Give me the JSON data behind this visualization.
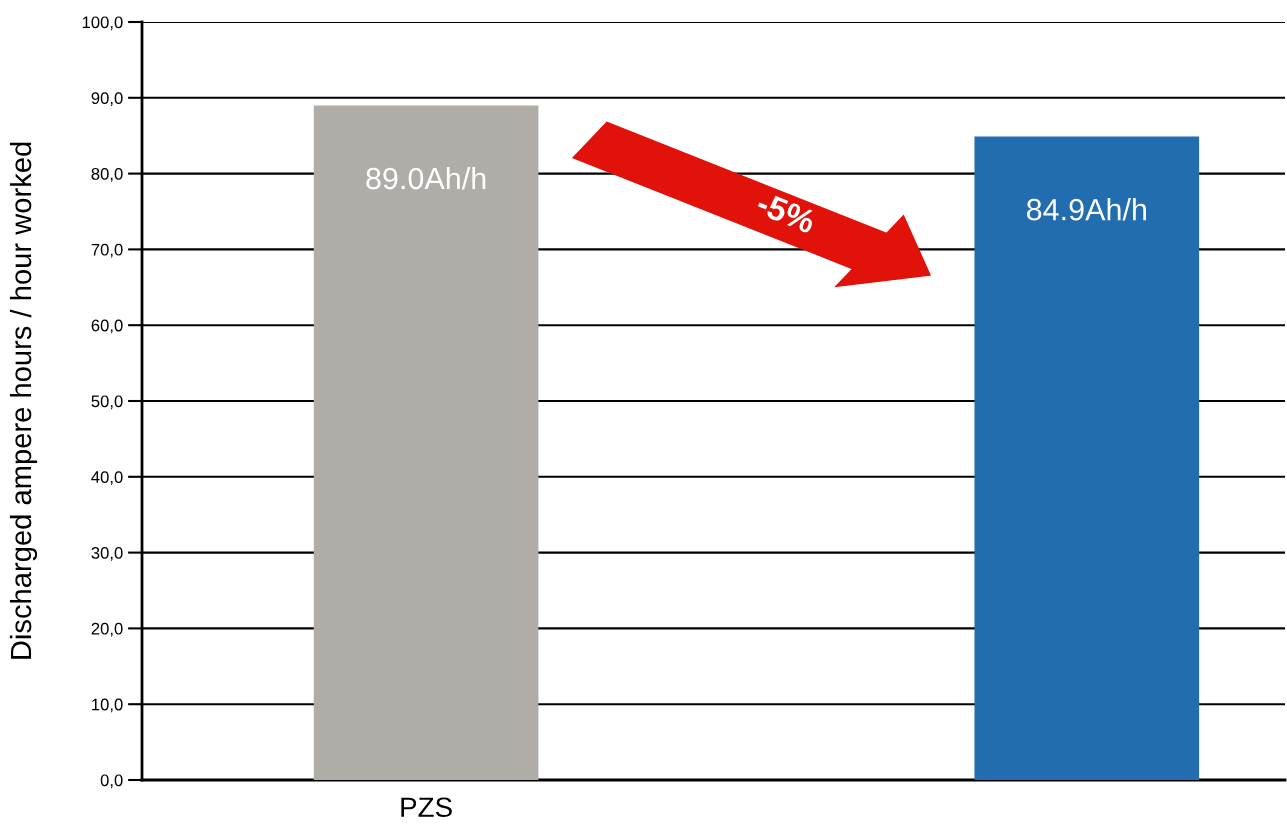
{
  "chart_data": {
    "type": "bar",
    "categories": [
      "PZS",
      null
    ],
    "values": [
      89.0,
      84.9
    ],
    "colors": [
      "#b0aca8",
      "#226db0"
    ],
    "value_labels": [
      "89.0Ah/h",
      "84.9Ah/h"
    ],
    "ylabel": "Discharged ampere hours / hour worked",
    "ylim": [
      0,
      100
    ],
    "yticks": [
      {
        "value": 0,
        "label": "0,0"
      },
      {
        "value": 10,
        "label": "10,0"
      },
      {
        "value": 20,
        "label": "20,0"
      },
      {
        "value": 30,
        "label": "30,0"
      },
      {
        "value": 40,
        "label": "40,0"
      },
      {
        "value": 50,
        "label": "50,0"
      },
      {
        "value": 60,
        "label": "60,0"
      },
      {
        "value": 70,
        "label": "70,0"
      },
      {
        "value": 80,
        "label": "80,0"
      },
      {
        "value": 90,
        "label": "90,0"
      },
      {
        "value": 100,
        "label": "100,0"
      }
    ],
    "grid": "y",
    "annotations": [
      "-5%"
    ]
  }
}
